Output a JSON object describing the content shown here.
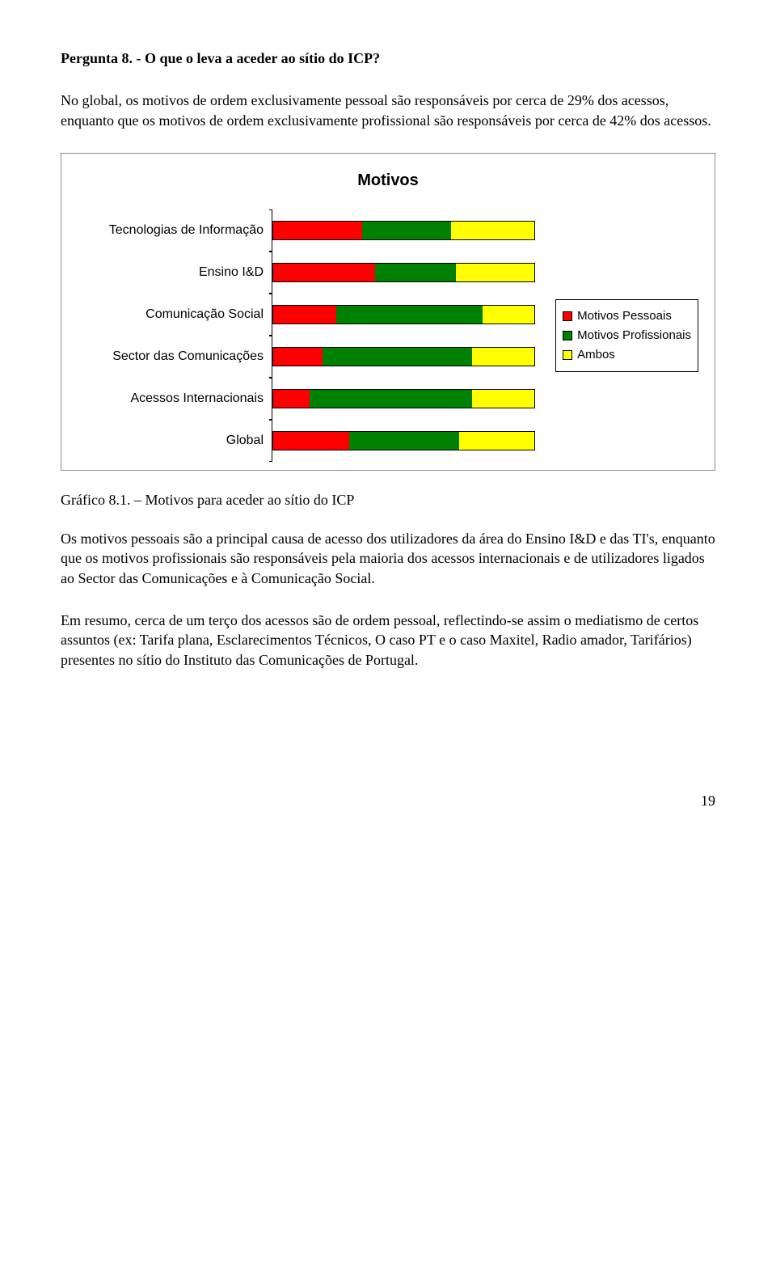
{
  "heading": "Pergunta 8. - O que o leva a aceder ao sítio do ICP?",
  "intro": "No global, os motivos de ordem exclusivamente pessoal são responsáveis por cerca de 29% dos acessos, enquanto que os motivos de ordem exclusivamente profissional são responsáveis por cerca de 42% dos acessos.",
  "chart": {
    "title": "Motivos",
    "type": "stacked-bar-horizontal",
    "colors": {
      "pessoais": "#ff0000",
      "profissionais": "#008000",
      "ambos": "#ffff00"
    },
    "legend": [
      {
        "key": "pessoais",
        "label": "Motivos Pessoais"
      },
      {
        "key": "profissionais",
        "label": "Motivos Profissionais"
      },
      {
        "key": "ambos",
        "label": "Ambos"
      }
    ],
    "categories": [
      {
        "label": "Tecnologias de Informação",
        "values": {
          "pessoais": 34,
          "profissionais": 34,
          "ambos": 32
        }
      },
      {
        "label": "Ensino I&D",
        "values": {
          "pessoais": 39,
          "profissionais": 31,
          "ambos": 30
        }
      },
      {
        "label": "Comunicação Social",
        "values": {
          "pessoais": 24,
          "profissionais": 56,
          "ambos": 20
        }
      },
      {
        "label": "Sector das Comunicações",
        "values": {
          "pessoais": 19,
          "profissionais": 57,
          "ambos": 24
        }
      },
      {
        "label": "Acessos Internacionais",
        "values": {
          "pessoais": 14,
          "profissionais": 62,
          "ambos": 24
        }
      },
      {
        "label": "Global",
        "values": {
          "pessoais": 29,
          "profissionais": 42,
          "ambos": 29
        }
      }
    ],
    "label_fontsize": 16,
    "title_fontsize": 20,
    "background_color": "#ffffff",
    "border_color": "#888888"
  },
  "caption": "Gráfico 8.1. – Motivos para aceder ao sítio do ICP",
  "body1": "Os motivos pessoais são a principal causa de acesso dos utilizadores da área do Ensino I&D e das TI's, enquanto que os motivos profissionais são responsáveis pela maioria dos acessos internacionais e de utilizadores ligados ao Sector das Comunicações e à Comunicação Social.",
  "body2": "Em resumo, cerca de um terço dos acessos são de ordem pessoal, reflectindo-se assim o mediatismo de certos assuntos (ex: Tarifa plana, Esclarecimentos Técnicos, O caso PT e o caso Maxitel, Radio amador, Tarifários) presentes no sítio do Instituto das Comunicações de Portugal.",
  "page_number": "19"
}
